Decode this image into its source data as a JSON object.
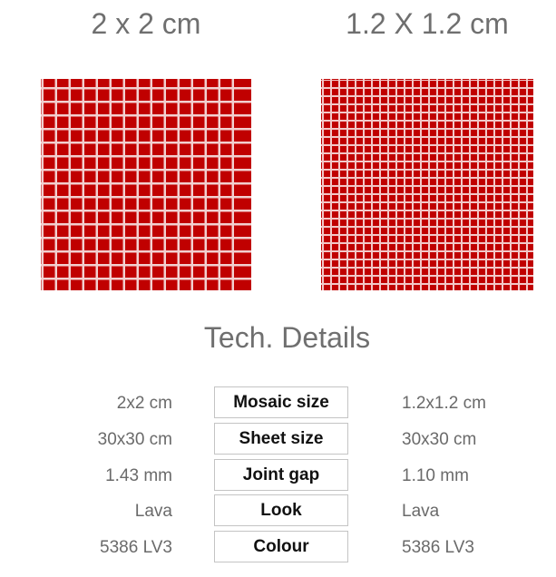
{
  "sizes": {
    "left_title": "2 x 2 cm",
    "right_title": "1.2 X 1.2 cm"
  },
  "tile_color": "#c00000",
  "grout_color": "#f2d0d0",
  "section_title": "Tech. Details",
  "details": [
    {
      "label": "Mosaic size",
      "left": "2x2 cm",
      "right": "1.2x1.2 cm"
    },
    {
      "label": "Sheet size",
      "left": "30x30 cm",
      "right": "30x30 cm"
    },
    {
      "label": "Joint gap",
      "left": "1.43 mm",
      "right": "1.10 mm"
    },
    {
      "label": "Look",
      "left": "Lava",
      "right": "Lava"
    },
    {
      "label": "Colour",
      "left": "5386 LV3",
      "right": "5386 LV3"
    }
  ]
}
